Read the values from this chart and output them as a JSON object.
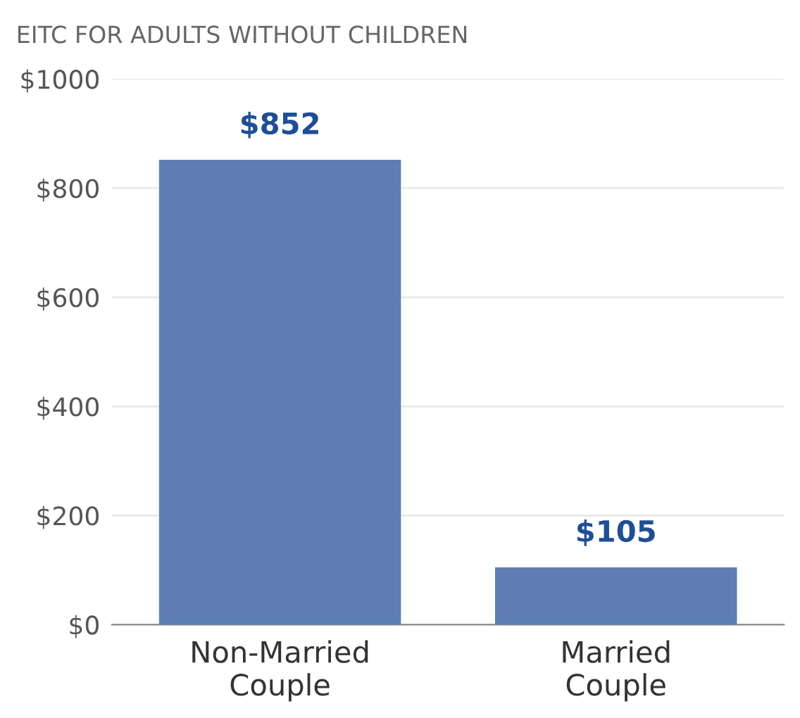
{
  "chart_data": {
    "type": "bar",
    "title": "EITC FOR ADULTS WITHOUT CHILDREN",
    "categories": [
      "Non-Married\nCouple",
      "Married\nCouple"
    ],
    "values": [
      852,
      105
    ],
    "color": "#5f7db5",
    "value_labels": [
      "$852",
      "$105"
    ],
    "ylim": [
      0,
      1000
    ],
    "yticks": [
      {
        "value": 0,
        "label": "$0"
      },
      {
        "value": 200,
        "label": "$200"
      },
      {
        "value": 400,
        "label": "$400"
      },
      {
        "value": 600,
        "label": "$600"
      },
      {
        "value": 800,
        "label": "$800"
      },
      {
        "value": 1000,
        "label": "$1000"
      }
    ],
    "grid": "y"
  }
}
